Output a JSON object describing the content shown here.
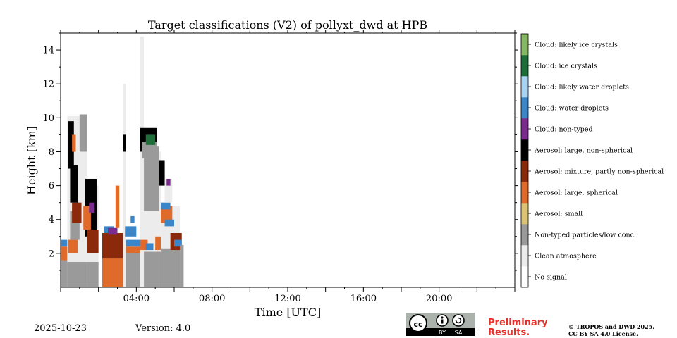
{
  "chart_data": {
    "type": "heatmap",
    "title": "Target classifications (V2) of pollyxt_dwd at HPB",
    "xlabel": "Time [UTC]",
    "ylabel": "Height [km]",
    "xlim_hours": [
      0,
      24
    ],
    "ylim_km": [
      0,
      15
    ],
    "x_ticks": [
      {
        "hour": 4,
        "label": "04:00"
      },
      {
        "hour": 8,
        "label": "08:00"
      },
      {
        "hour": 12,
        "label": "12:00"
      },
      {
        "hour": 16,
        "label": "16:00"
      },
      {
        "hour": 20,
        "label": "20:00"
      }
    ],
    "y_ticks": [
      {
        "km": 2,
        "label": "2"
      },
      {
        "km": 4,
        "label": "4"
      },
      {
        "km": 6,
        "label": "6"
      },
      {
        "km": 8,
        "label": "8"
      },
      {
        "km": 10,
        "label": "10"
      },
      {
        "km": 12,
        "label": "12"
      },
      {
        "km": 14,
        "label": "14"
      }
    ],
    "classes": [
      {
        "id": 0,
        "label": "No signal",
        "color": "#ffffff"
      },
      {
        "id": 1,
        "label": "Clean atmosphere",
        "color": "#ececec"
      },
      {
        "id": 2,
        "label": "Non-typed particles/low conc.",
        "color": "#9a9a9a"
      },
      {
        "id": 3,
        "label": "Aerosol: small",
        "color": "#dcc474"
      },
      {
        "id": 4,
        "label": "Aerosol: large, spherical",
        "color": "#e06a2a"
      },
      {
        "id": 5,
        "label": "Aerosol: mixture, partly non-spherical",
        "color": "#8b2a0a"
      },
      {
        "id": 6,
        "label": "Aerosol: large, non-spherical",
        "color": "#000000"
      },
      {
        "id": 7,
        "label": "Cloud: non-typed",
        "color": "#7b2a8e"
      },
      {
        "id": 8,
        "label": "Cloud: water droplets",
        "color": "#3a86c8"
      },
      {
        "id": 9,
        "label": "Cloud: likely water droplets",
        "color": "#a9d3f0"
      },
      {
        "id": 10,
        "label": "Cloud: ice crystals",
        "color": "#1e6e3a"
      },
      {
        "id": 11,
        "label": "Cloud: likely ice crystals",
        "color": "#86b863"
      }
    ],
    "regions": [
      {
        "t0": 0.0,
        "t1": 0.35,
        "h0": 0.0,
        "h1": 1.6,
        "cls": 2
      },
      {
        "t0": 0.0,
        "t1": 0.35,
        "h0": 1.6,
        "h1": 2.4,
        "cls": 4
      },
      {
        "t0": 0.0,
        "t1": 0.35,
        "h0": 2.4,
        "h1": 2.8,
        "cls": 8
      },
      {
        "t0": 0.35,
        "t1": 1.4,
        "h0": 0.0,
        "h1": 1.5,
        "cls": 2
      },
      {
        "t0": 0.35,
        "t1": 1.4,
        "h0": 1.5,
        "h1": 10.1,
        "cls": 1
      },
      {
        "t0": 0.4,
        "t1": 0.9,
        "h0": 2.0,
        "h1": 2.8,
        "cls": 4
      },
      {
        "t0": 0.5,
        "t1": 1.0,
        "h0": 2.8,
        "h1": 4.5,
        "cls": 2
      },
      {
        "t0": 0.6,
        "t1": 1.1,
        "h0": 3.8,
        "h1": 5.0,
        "cls": 5
      },
      {
        "t0": 0.5,
        "t1": 0.9,
        "h0": 5.0,
        "h1": 7.2,
        "cls": 6
      },
      {
        "t0": 0.4,
        "t1": 0.7,
        "h0": 7.0,
        "h1": 9.8,
        "cls": 6
      },
      {
        "t0": 0.6,
        "t1": 0.8,
        "h0": 8.0,
        "h1": 9.0,
        "cls": 4
      },
      {
        "t0": 1.0,
        "t1": 1.4,
        "h0": 8.0,
        "h1": 10.2,
        "cls": 2
      },
      {
        "t0": 1.4,
        "t1": 2.0,
        "h0": 0.0,
        "h1": 1.5,
        "cls": 2
      },
      {
        "t0": 1.4,
        "t1": 2.0,
        "h0": 1.5,
        "h1": 6.0,
        "cls": 1
      },
      {
        "t0": 1.3,
        "t1": 1.9,
        "h0": 3.0,
        "h1": 6.4,
        "cls": 6
      },
      {
        "t0": 1.4,
        "t1": 2.0,
        "h0": 2.0,
        "h1": 3.4,
        "cls": 5
      },
      {
        "t0": 1.2,
        "t1": 1.6,
        "h0": 3.4,
        "h1": 4.8,
        "cls": 4
      },
      {
        "t0": 1.5,
        "t1": 1.8,
        "h0": 4.4,
        "h1": 5.0,
        "cls": 7
      },
      {
        "t0": 2.2,
        "t1": 3.3,
        "h0": 0.0,
        "h1": 3.2,
        "cls": 4
      },
      {
        "t0": 2.2,
        "t1": 3.3,
        "h0": 1.7,
        "h1": 3.2,
        "cls": 5
      },
      {
        "t0": 2.3,
        "t1": 2.8,
        "h0": 3.2,
        "h1": 3.6,
        "cls": 8
      },
      {
        "t0": 2.5,
        "t1": 3.0,
        "h0": 3.1,
        "h1": 3.5,
        "cls": 7
      },
      {
        "t0": 2.9,
        "t1": 3.1,
        "h0": 3.5,
        "h1": 6.0,
        "cls": 4
      },
      {
        "t0": 3.3,
        "t1": 3.45,
        "h0": 0.0,
        "h1": 12.0,
        "cls": 1
      },
      {
        "t0": 3.3,
        "t1": 3.45,
        "h0": 8.0,
        "h1": 9.0,
        "cls": 6
      },
      {
        "t0": 3.45,
        "t1": 4.2,
        "h0": 0.0,
        "h1": 2.0,
        "cls": 2
      },
      {
        "t0": 3.45,
        "t1": 4.2,
        "h0": 2.0,
        "h1": 2.4,
        "cls": 4
      },
      {
        "t0": 3.45,
        "t1": 4.2,
        "h0": 2.4,
        "h1": 2.8,
        "cls": 8
      },
      {
        "t0": 3.4,
        "t1": 4.0,
        "h0": 3.0,
        "h1": 3.6,
        "cls": 8
      },
      {
        "t0": 3.7,
        "t1": 3.9,
        "h0": 3.8,
        "h1": 4.2,
        "cls": 8
      },
      {
        "t0": 4.2,
        "t1": 5.3,
        "h0": 0.0,
        "h1": 2.1,
        "cls": 2
      },
      {
        "t0": 4.2,
        "t1": 5.3,
        "h0": 2.1,
        "h1": 8.0,
        "cls": 1
      },
      {
        "t0": 4.2,
        "t1": 4.4,
        "h0": 0.0,
        "h1": 14.8,
        "cls": 1
      },
      {
        "t0": 4.4,
        "t1": 5.2,
        "h0": 4.5,
        "h1": 8.3,
        "cls": 2
      },
      {
        "t0": 4.2,
        "t1": 5.1,
        "h0": 8.0,
        "h1": 9.4,
        "cls": 6
      },
      {
        "t0": 4.3,
        "t1": 5.1,
        "h0": 7.6,
        "h1": 8.6,
        "cls": 2
      },
      {
        "t0": 4.5,
        "t1": 5.0,
        "h0": 8.4,
        "h1": 9.0,
        "cls": 10
      },
      {
        "t0": 4.2,
        "t1": 4.6,
        "h0": 2.2,
        "h1": 2.8,
        "cls": 4
      },
      {
        "t0": 4.5,
        "t1": 4.9,
        "h0": 2.2,
        "h1": 2.6,
        "cls": 8
      },
      {
        "t0": 5.0,
        "t1": 5.3,
        "h0": 2.2,
        "h1": 3.0,
        "cls": 4
      },
      {
        "t0": 5.2,
        "t1": 5.5,
        "h0": 6.0,
        "h1": 7.5,
        "cls": 6
      },
      {
        "t0": 5.3,
        "t1": 6.3,
        "h0": 0.0,
        "h1": 2.3,
        "cls": 2
      },
      {
        "t0": 5.3,
        "t1": 6.3,
        "h0": 2.3,
        "h1": 4.8,
        "cls": 1
      },
      {
        "t0": 5.3,
        "t1": 5.9,
        "h0": 3.8,
        "h1": 4.8,
        "cls": 4
      },
      {
        "t0": 5.3,
        "t1": 5.8,
        "h0": 4.6,
        "h1": 5.0,
        "cls": 8
      },
      {
        "t0": 5.5,
        "t1": 5.9,
        "h0": 5.0,
        "h1": 6.4,
        "cls": 1
      },
      {
        "t0": 5.5,
        "t1": 6.0,
        "h0": 3.6,
        "h1": 4.0,
        "cls": 8
      },
      {
        "t0": 5.8,
        "t1": 6.4,
        "h0": 2.2,
        "h1": 3.2,
        "cls": 5
      },
      {
        "t0": 6.0,
        "t1": 6.4,
        "h0": 2.4,
        "h1": 2.8,
        "cls": 8
      },
      {
        "t0": 5.6,
        "t1": 5.8,
        "h0": 6.0,
        "h1": 6.4,
        "cls": 7
      },
      {
        "t0": 6.3,
        "t1": 6.5,
        "h0": 0.0,
        "h1": 2.5,
        "cls": 2
      }
    ]
  },
  "footer": {
    "date": "2025-10-23",
    "version": "Version: 4.0",
    "preliminary_line1": "Preliminary",
    "preliminary_line2": "Results.",
    "copyright_line1": "© TROPOS and DWD 2025.",
    "copyright_line2": "CC BY SA 4.0 License."
  },
  "license_badge": {
    "cc": "cc",
    "by": "BY",
    "sa": "SA"
  }
}
